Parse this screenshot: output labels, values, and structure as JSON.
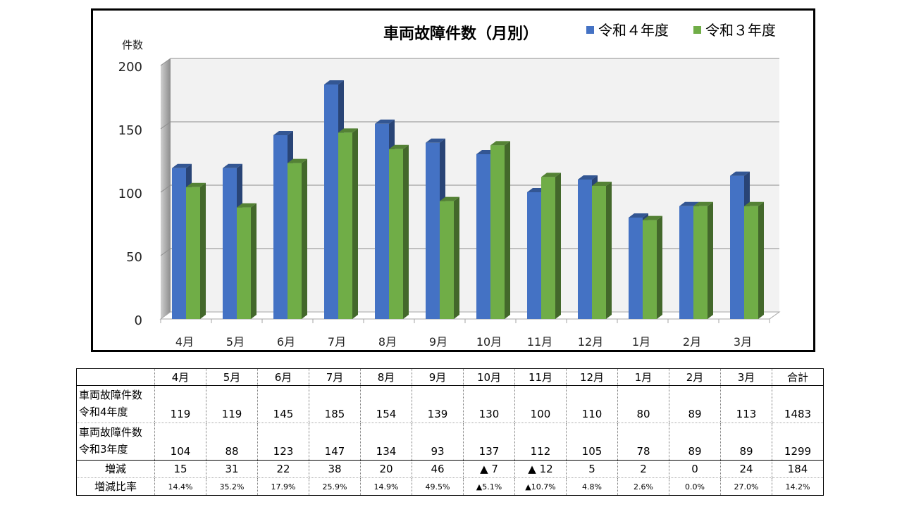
{
  "chart_data": {
    "type": "bar",
    "title": "車両故障件数（月別）",
    "ylabel": "件数",
    "categories": [
      "4月",
      "5月",
      "6月",
      "7月",
      "8月",
      "9月",
      "10月",
      "11月",
      "12月",
      "1月",
      "2月",
      "3月"
    ],
    "series": [
      {
        "name": "令和４年度",
        "color": "#4472C4",
        "values": [
          119,
          119,
          145,
          185,
          154,
          139,
          130,
          100,
          110,
          80,
          89,
          113
        ]
      },
      {
        "name": "令和３年度",
        "color": "#70AD47",
        "values": [
          104,
          88,
          123,
          147,
          134,
          93,
          137,
          112,
          105,
          78,
          89,
          89
        ]
      }
    ],
    "ylim": [
      0,
      200
    ],
    "yticks": [
      "0",
      "50",
      "100",
      "150",
      "200"
    ],
    "grid": true,
    "legend_position": "top-right",
    "style": "3d-clustered-column"
  },
  "table": {
    "headers": [
      "4月",
      "5月",
      "6月",
      "7月",
      "8月",
      "9月",
      "10月",
      "11月",
      "12月",
      "1月",
      "2月",
      "3月",
      "合計"
    ],
    "rows": [
      {
        "label_line1": "車両故障件数",
        "label_line2": "令和4年度",
        "values": [
          "119",
          "119",
          "145",
          "185",
          "154",
          "139",
          "130",
          "100",
          "110",
          "80",
          "89",
          "113",
          "1483"
        ]
      },
      {
        "label_line1": "車両故障件数",
        "label_line2": "令和3年度",
        "values": [
          "104",
          "88",
          "123",
          "147",
          "134",
          "93",
          "137",
          "112",
          "105",
          "78",
          "89",
          "89",
          "1299"
        ]
      },
      {
        "label_line1": "増減",
        "values": [
          "15",
          "31",
          "22",
          "38",
          "20",
          "46",
          "▲ 7",
          "▲ 12",
          "5",
          "2",
          "0",
          "24",
          "184"
        ]
      },
      {
        "label_line1": "増減比率",
        "values": [
          "14.4%",
          "35.2%",
          "17.9%",
          "25.9%",
          "14.9%",
          "49.5%",
          "▲5.1%",
          "▲10.7%",
          "4.8%",
          "2.6%",
          "0.0%",
          "27.0%",
          "14.2%"
        ]
      }
    ]
  }
}
